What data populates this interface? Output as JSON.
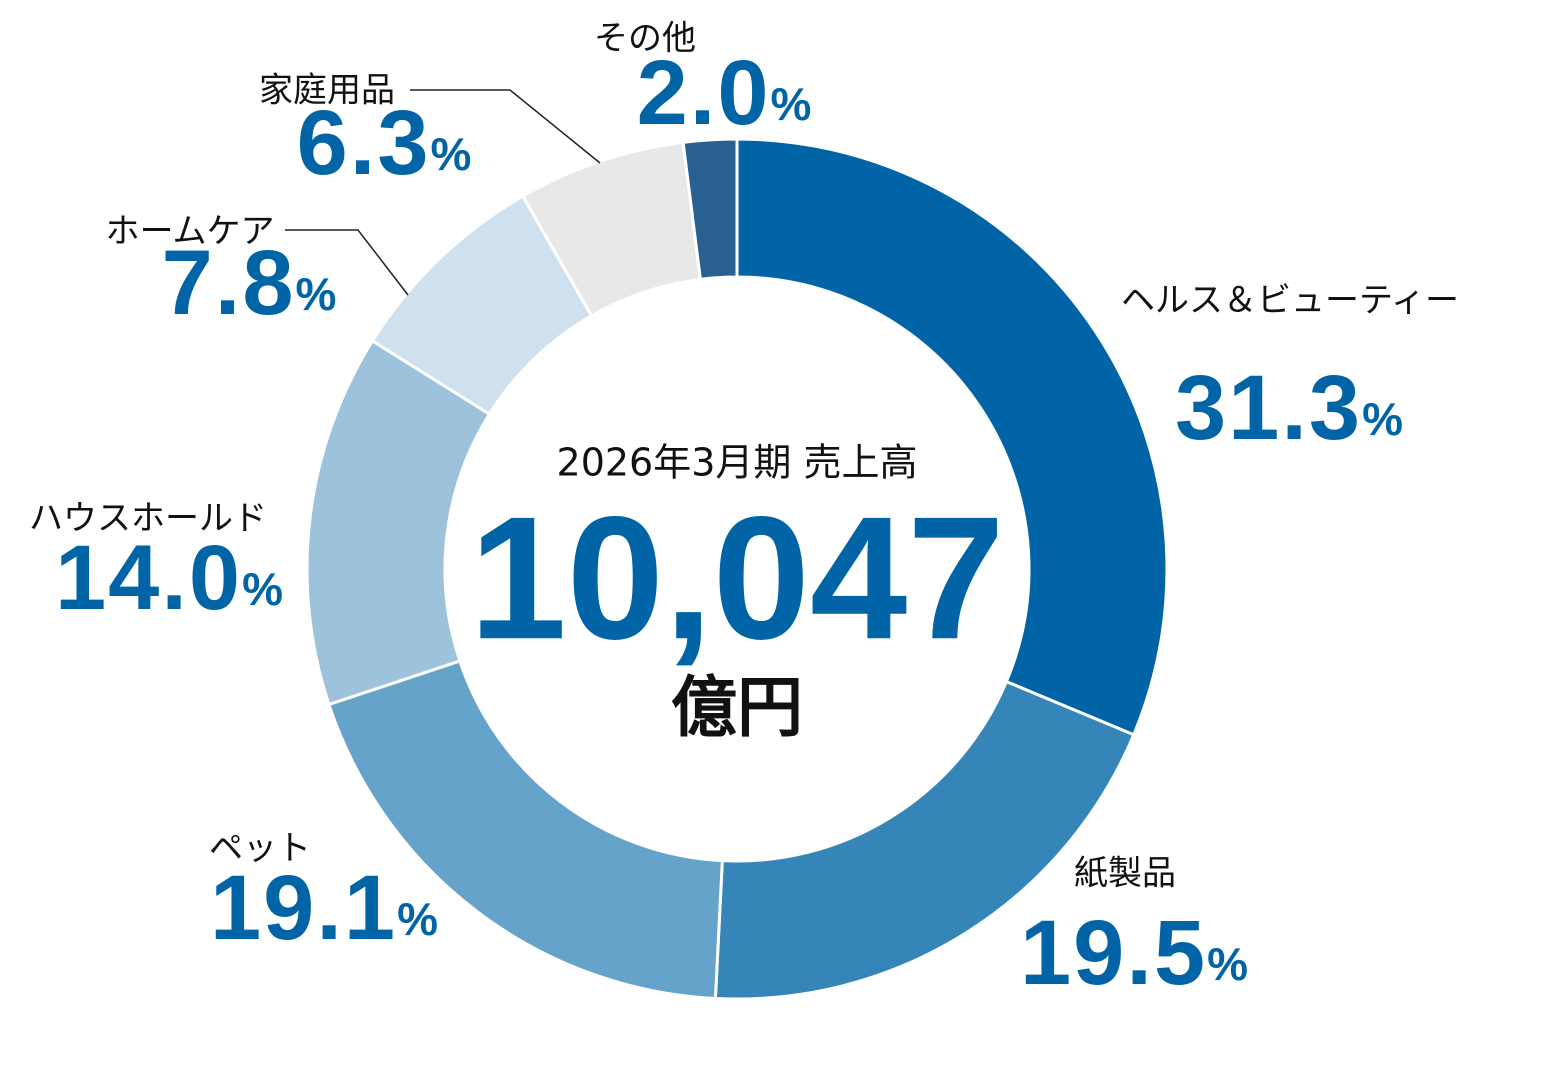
{
  "chart_data": {
    "type": "donut",
    "center_title": "2026年3月期 売上高",
    "center_value": "10,047",
    "center_unit": "億円",
    "categories": [
      "ヘルス＆ビューティー",
      "紙製品",
      "ペット",
      "ハウスホールド",
      "ホームケア",
      "家庭用品",
      "その他"
    ],
    "values": [
      31.3,
      19.5,
      19.1,
      14.0,
      7.8,
      6.3,
      2.0
    ],
    "value_labels": [
      "31.3%",
      "19.5%",
      "19.1%",
      "14.0%",
      "7.8%",
      "6.3%",
      "2.0%"
    ],
    "colors": [
      "#0064a6",
      "#3585b9",
      "#66a3cb",
      "#9dc2dc",
      "#cfe0ee",
      "#e8e8e8",
      "#286092"
    ]
  }
}
